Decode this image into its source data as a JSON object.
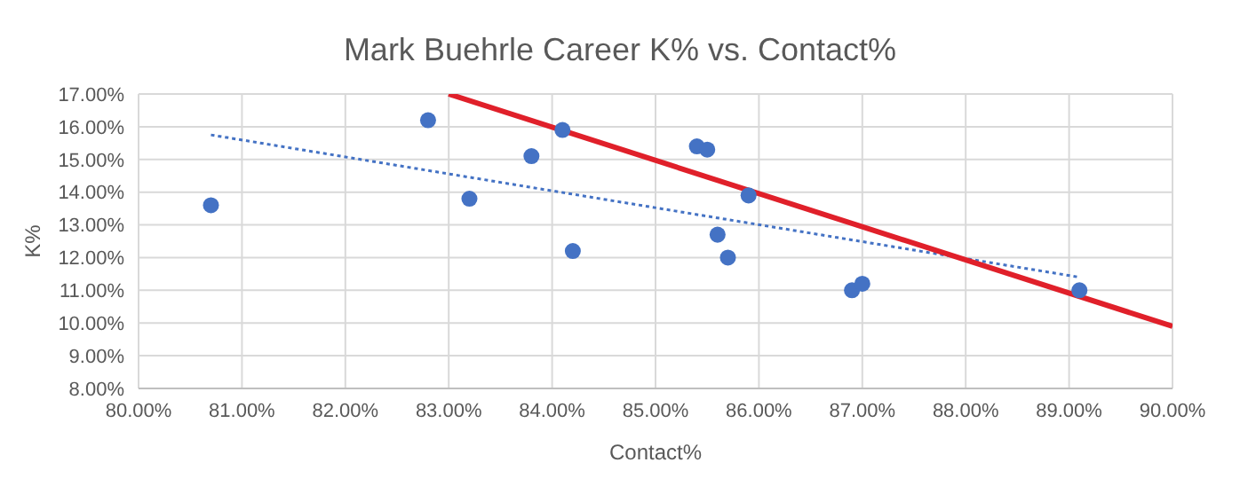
{
  "chart_data": {
    "type": "scatter",
    "title": "Mark Buehrle Career K% vs. Contact%",
    "xlabel": "Contact%",
    "ylabel": "K%",
    "series": [
      {
        "marker": "circle",
        "color": "#4472c4",
        "x": [
          80.7,
          82.8,
          83.2,
          83.8,
          84.1,
          84.2,
          85.4,
          85.5,
          85.6,
          85.7,
          85.9,
          86.9,
          87.0,
          89.1
        ],
        "values": [
          13.6,
          16.2,
          13.8,
          15.1,
          15.9,
          12.2,
          15.4,
          15.3,
          12.7,
          12.0,
          13.9,
          11.0,
          11.2,
          11.0
        ]
      },
      {
        "type": "line",
        "marker": "none",
        "color": "#4472c4",
        "line_style": "dotted",
        "x": [
          80.7,
          89.1
        ],
        "values": [
          15.75,
          11.4
        ]
      },
      {
        "type": "line",
        "marker": "none",
        "color": "#e0202a",
        "line_style": "solid",
        "x": [
          83.0,
          90.0
        ],
        "values": [
          17.0,
          9.9
        ]
      }
    ],
    "xlim": [
      80,
      90
    ],
    "xticks": [
      {
        "value": 80,
        "label": "80.00%"
      },
      {
        "value": 81,
        "label": "81.00%"
      },
      {
        "value": 82,
        "label": "82.00%"
      },
      {
        "value": 83,
        "label": "83.00%"
      },
      {
        "value": 84,
        "label": "84.00%"
      },
      {
        "value": 85,
        "label": "85.00%"
      },
      {
        "value": 86,
        "label": "86.00%"
      },
      {
        "value": 87,
        "label": "87.00%"
      },
      {
        "value": 88,
        "label": "88.00%"
      },
      {
        "value": 89,
        "label": "89.00%"
      },
      {
        "value": 90,
        "label": "90.00%"
      }
    ],
    "ylim": [
      8,
      17
    ],
    "yticks": [
      {
        "value": 8,
        "label": "8.00%"
      },
      {
        "value": 9,
        "label": "9.00%"
      },
      {
        "value": 10,
        "label": "10.00%"
      },
      {
        "value": 11,
        "label": "11.00%"
      },
      {
        "value": 12,
        "label": "12.00%"
      },
      {
        "value": 13,
        "label": "13.00%"
      },
      {
        "value": 14,
        "label": "14.00%"
      },
      {
        "value": 15,
        "label": "15.00%"
      },
      {
        "value": 16,
        "label": "16.00%"
      },
      {
        "value": 17,
        "label": "17.00%"
      }
    ],
    "grid": true,
    "legend": false
  }
}
